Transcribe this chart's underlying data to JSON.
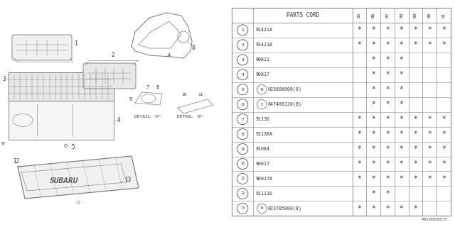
{
  "bg_color": "#ffffff",
  "table_header": "PARTS CORD",
  "year_cols": [
    "85",
    "86",
    "87",
    "88",
    "89",
    "90",
    "91"
  ],
  "rows": [
    {
      "num": 1,
      "code": "91421A",
      "marks": [
        1,
        1,
        1,
        1,
        1,
        1,
        1
      ],
      "prefix": ""
    },
    {
      "num": 2,
      "code": "91421B",
      "marks": [
        1,
        1,
        1,
        1,
        1,
        1,
        1
      ],
      "prefix": ""
    },
    {
      "num": 3,
      "code": "90821",
      "marks": [
        0,
        1,
        1,
        1,
        0,
        0,
        0
      ],
      "prefix": ""
    },
    {
      "num": 4,
      "code": "90817",
      "marks": [
        0,
        1,
        1,
        1,
        0,
        0,
        0
      ],
      "prefix": ""
    },
    {
      "num": 5,
      "code": "023806000(8)",
      "marks": [
        0,
        1,
        1,
        1,
        0,
        0,
        0
      ],
      "prefix": "N"
    },
    {
      "num": 6,
      "code": "047406120(8)",
      "marks": [
        0,
        1,
        1,
        1,
        0,
        0,
        0
      ],
      "prefix": "S"
    },
    {
      "num": 7,
      "code": "91136",
      "marks": [
        1,
        1,
        1,
        1,
        1,
        1,
        1
      ],
      "prefix": ""
    },
    {
      "num": 8,
      "code": "91136A",
      "marks": [
        1,
        1,
        1,
        1,
        1,
        1,
        1
      ],
      "prefix": ""
    },
    {
      "num": 9,
      "code": "91084",
      "marks": [
        1,
        1,
        1,
        1,
        1,
        1,
        1
      ],
      "prefix": ""
    },
    {
      "num": 10,
      "code": "96017",
      "marks": [
        1,
        1,
        1,
        1,
        1,
        1,
        1
      ],
      "prefix": ""
    },
    {
      "num": 11,
      "code": "96017A",
      "marks": [
        1,
        1,
        1,
        1,
        1,
        1,
        1
      ],
      "prefix": ""
    },
    {
      "num": 12,
      "code": "911110",
      "marks": [
        0,
        1,
        1,
        0,
        0,
        0,
        0
      ],
      "prefix": ""
    },
    {
      "num": 13,
      "code": "023705000(8)",
      "marks": [
        1,
        1,
        1,
        1,
        1,
        0,
        0
      ],
      "prefix": "N"
    }
  ],
  "footer": "A920000035",
  "lc": "#777777",
  "tc": "#333333",
  "bc": "#aaaaaa"
}
